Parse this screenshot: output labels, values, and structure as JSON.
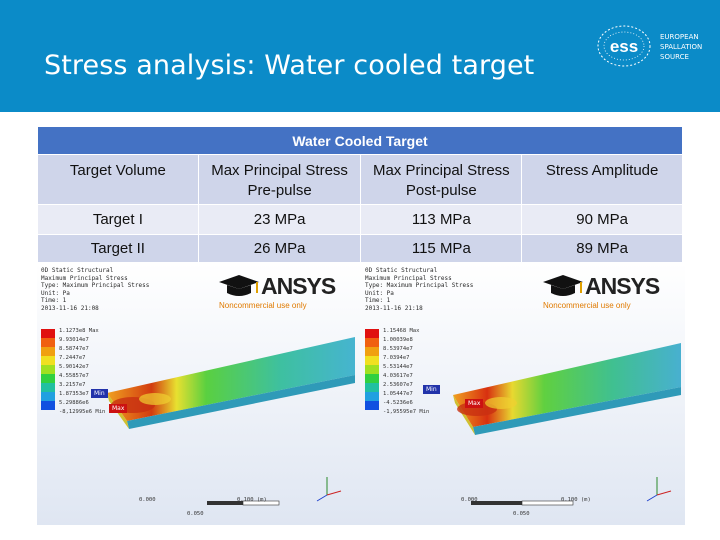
{
  "slide": {
    "title": "Stress analysis: Water cooled target",
    "logo": {
      "mark": "ess",
      "lines": [
        "EUROPEAN",
        "SPALLATION",
        "SOURCE"
      ]
    }
  },
  "table": {
    "caption": "Water Cooled Target",
    "headers": [
      {
        "line1": "Target Volume",
        "line2": ""
      },
      {
        "line1": "Max Principal Stress",
        "line2": "Pre-pulse"
      },
      {
        "line1": "Max Principal Stress",
        "line2": "Post-pulse"
      },
      {
        "line1": "Stress Amplitude",
        "line2": ""
      }
    ],
    "rows": [
      [
        "Target I",
        "23 MPa",
        "113 MPa",
        "90 MPa"
      ],
      [
        "Target II",
        "26 MPa",
        "115 MPa",
        "89 MPa"
      ]
    ]
  },
  "simulations": [
    {
      "info": [
        "0D Static Structural",
        "Maximum Principal Stress",
        "Type: Maximum Principal Stress",
        "Unit: Pa",
        "Time: 1",
        "2013-11-16 21:08"
      ],
      "legend": [
        "1.1273e8 Max",
        "9.93014e7",
        "8.58747e7",
        "7.2447e7",
        "5.90142e7",
        "4.55857e7",
        "3.2157e7",
        "1.87353e7",
        "5.29886e6",
        "-8,12995e6 Min"
      ],
      "max_tag": "Max",
      "min_tag": "Min",
      "scale": {
        "start": "0.000",
        "mid": "0.050",
        "end": "0.100 (m)"
      },
      "watermark": {
        "brand": "ANSYS",
        "note": "Noncommercial use only"
      }
    },
    {
      "info": [
        "0D Static Structural",
        "Maximum Principal Stress",
        "Type: Maximum Principal Stress",
        "Unit: Pa",
        "Time: 1",
        "2013-11-16 21:18"
      ],
      "legend": [
        "1.15468 Max",
        "1.00039e8",
        "8.53974e7",
        "7.0394e7",
        "5.53144e7",
        "4.03617e7",
        "2.53607e7",
        "1.05447e7",
        "-4.5236e6",
        "-1,95595e7 Min"
      ],
      "max_tag": "Max",
      "min_tag": "Min",
      "scale": {
        "start": "0.000",
        "mid": "0.050",
        "end": "0.100 (m)"
      },
      "watermark": {
        "brand": "ANSYS",
        "note": "Noncommercial use only"
      }
    }
  ],
  "colors": {
    "header_bg": "#0b8bc8",
    "table_caption_bg": "#4472c4",
    "table_row_dark": "#cfd5ea",
    "table_row_light": "#e9ebf5"
  }
}
